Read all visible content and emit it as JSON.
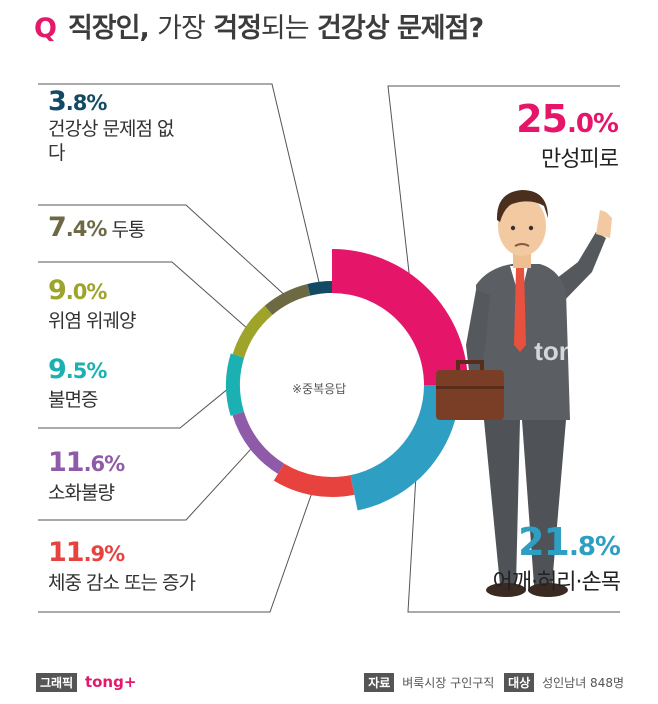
{
  "title": {
    "q": "Q",
    "part1": "직장인,",
    "part2": "가장",
    "part3": "걱정",
    "part4": "되는",
    "part5": "건강상",
    "part6": "문제점?"
  },
  "center_note": "※중복응답",
  "watermark": "tong+",
  "footer": {
    "graphic_tag": "그래픽",
    "brand": "tong+",
    "source_tag": "자료",
    "source": "벼룩시장 구인구직",
    "target_tag": "대상",
    "target": "성인남녀 848명"
  },
  "chart_data": {
    "type": "pie",
    "style": "donut",
    "title": "직장인, 가장 걱정되는 건강상 문제점?",
    "unit": "%",
    "slices": [
      {
        "label": "만성피로",
        "value": 25.0,
        "int": "25",
        "dec": ".0%",
        "color": "#e5156a"
      },
      {
        "label": "어깨·허리·손목",
        "value": 21.8,
        "int": "21",
        "dec": ".8%",
        "color": "#2e9ec2"
      },
      {
        "label": "체중 감소 또는 증가",
        "value": 11.9,
        "int": "11",
        "dec": ".9%",
        "color": "#e8423f"
      },
      {
        "label": "소화불량",
        "value": 11.6,
        "int": "11",
        "dec": ".6%",
        "color": "#8f5aa8"
      },
      {
        "label": "불면증",
        "value": 9.5,
        "int": "9",
        "dec": ".5%",
        "color": "#1bb1b3"
      },
      {
        "label": "위염 위궤양",
        "value": 9.0,
        "int": "9",
        "dec": ".0%",
        "color": "#9ea32a"
      },
      {
        "label": "두통",
        "value": 7.4,
        "int": "7",
        "dec": ".4%",
        "color": "#6d6a43"
      },
      {
        "label": "건강상 문제점 없다",
        "value": 3.8,
        "int": "3",
        "dec": ".8%",
        "color": "#124a63"
      }
    ]
  }
}
